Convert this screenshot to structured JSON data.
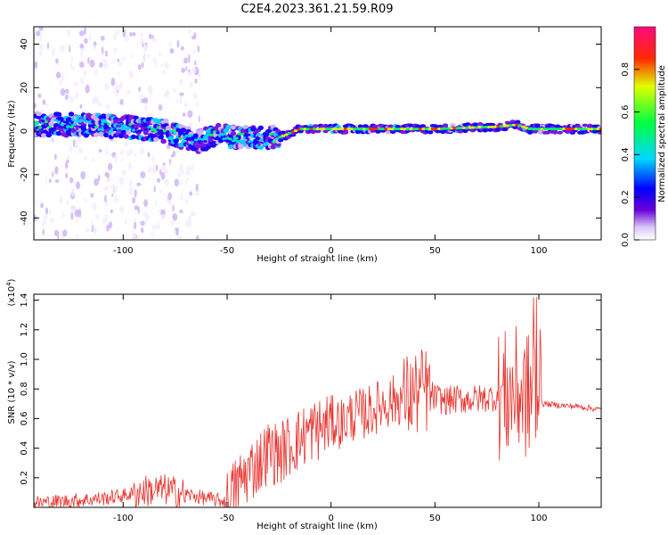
{
  "title": "C2E4.2023.361.21.59.R09",
  "chart_data": [
    {
      "type": "heatmap",
      "xlabel": "Height of straight line (km)",
      "ylabel": "Frequency (Hz)",
      "xlim": [
        -143,
        130
      ],
      "ylim": [
        -50,
        48
      ],
      "xticks": [
        -100,
        -50,
        0,
        50,
        100
      ],
      "yticks": [
        -40,
        -20,
        0,
        20,
        40
      ],
      "colorbar": {
        "label": "Normalized spectral amplitude",
        "range": [
          0.0,
          1.0
        ],
        "ticks": [
          0.0,
          0.2,
          0.4,
          0.6,
          0.8
        ],
        "colormap": "rainbow (white-violet-blue-cyan-green-yellow-red-magenta)"
      },
      "ridge": {
        "description": "dominant frequency band",
        "x": [
          -140,
          -120,
          -100,
          -80,
          -65,
          -55,
          -40,
          -25,
          -15,
          0,
          20,
          50,
          80,
          90,
          95,
          100,
          130
        ],
        "y": [
          3,
          3,
          2,
          0,
          -5,
          -2,
          -3,
          -3,
          1,
          1,
          1,
          1,
          2,
          3,
          1,
          1,
          1
        ]
      },
      "grid": false
    },
    {
      "type": "line",
      "xlabel": "Height of straight line (km)",
      "ylabel": "SNR (10 * v/v)",
      "yunit_label": "(x10",
      "yunit_exp": "4",
      "xlim": [
        -143,
        130
      ],
      "ylim": [
        0.0,
        1.44
      ],
      "xticks": [
        -100,
        -50,
        0,
        50,
        100
      ],
      "yticks": [
        0.2,
        0.4,
        0.6,
        0.8,
        1.0,
        1.2,
        1.4
      ],
      "series": [
        {
          "color": "#e8332e",
          "x": [
            -143,
            -130,
            -120,
            -110,
            -100,
            -90,
            -80,
            -70,
            -60,
            -50,
            -45,
            -40,
            -35,
            -30,
            -25,
            -20,
            -15,
            -10,
            -5,
            0,
            5,
            10,
            15,
            20,
            25,
            30,
            35,
            40,
            45,
            50,
            55,
            60,
            65,
            70,
            75,
            80,
            85,
            90,
            95,
            100,
            102,
            110,
            120,
            130
          ],
          "y": [
            0.03,
            0.04,
            0.05,
            0.06,
            0.08,
            0.11,
            0.12,
            0.09,
            0.06,
            0.04,
            0.15,
            0.24,
            0.3,
            0.38,
            0.36,
            0.42,
            0.46,
            0.52,
            0.53,
            0.58,
            0.57,
            0.62,
            0.63,
            0.66,
            0.7,
            0.72,
            0.74,
            0.76,
            0.8,
            0.74,
            0.72,
            0.73,
            0.73,
            0.73,
            0.74,
            0.75,
            0.76,
            0.78,
            0.75,
            0.78,
            0.7,
            0.69,
            0.68,
            0.66
          ]
        }
      ],
      "grid": false
    }
  ]
}
